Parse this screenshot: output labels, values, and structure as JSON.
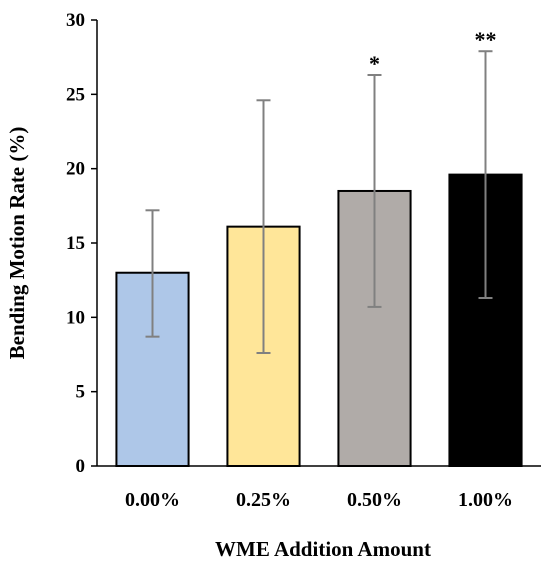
{
  "chart_data": {
    "type": "bar",
    "title": "",
    "xlabel": "WME Addition Amount",
    "ylabel": "Bending Motion Rate (%)",
    "ylim": [
      0,
      30
    ],
    "yticks": [
      0,
      5,
      10,
      15,
      20,
      25,
      30
    ],
    "ytick_labels": [
      "0",
      "5",
      "10",
      "15",
      "20",
      "25",
      "30"
    ],
    "categories": [
      "0.00%",
      "0.25%",
      "0.50%",
      "1.00%"
    ],
    "values": [
      13.0,
      16.1,
      18.5,
      19.6
    ],
    "error_upper": [
      17.2,
      24.6,
      26.3,
      27.9
    ],
    "error_lower": [
      8.7,
      7.6,
      10.7,
      11.3
    ],
    "significance": [
      "",
      "",
      "*",
      "**"
    ],
    "colors": [
      "#aec7e8",
      "#ffe699",
      "#b0aba8",
      "#000000"
    ],
    "edge_color": "#000000",
    "error_bar_color": "#808080",
    "grid": false,
    "legend": "none"
  }
}
